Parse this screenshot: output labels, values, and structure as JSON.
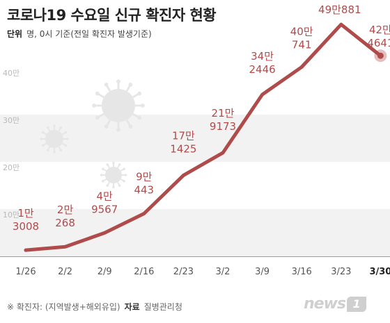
{
  "title": "코로나19 수요일 신규 확진자 현황",
  "unit": {
    "label": "단위",
    "text": "명, 0시 기준(전일 확진자 발생기준)"
  },
  "footnote": {
    "note": "※ 확진자: (지역발생+해외유입)",
    "source_label": "자료",
    "source": "질병관리청"
  },
  "logo": {
    "text": "news",
    "badge": "1"
  },
  "colors": {
    "line": "#b04b4b",
    "band": "#f2f2f2",
    "axis": "#9e9e9e",
    "virus": "#e6e6e6"
  },
  "chart_data": {
    "type": "line",
    "categories": [
      "1/26",
      "2/2",
      "2/9",
      "2/16",
      "2/23",
      "3/2",
      "3/9",
      "3/16",
      "3/23",
      "3/30"
    ],
    "values": [
      13008,
      20268,
      49567,
      90443,
      171425,
      219173,
      342446,
      400741,
      490881,
      424641
    ],
    "data_labels": [
      [
        "1만",
        "3008"
      ],
      [
        "2만",
        "268"
      ],
      [
        "4만",
        "9567"
      ],
      [
        "9만",
        "443"
      ],
      [
        "17만",
        "1425"
      ],
      [
        "21만",
        "9173"
      ],
      [
        "34만",
        "2446"
      ],
      [
        "40만",
        "741"
      ],
      [
        "49만881",
        ""
      ],
      [
        "42만",
        "4641"
      ]
    ],
    "y_ticks": [
      {
        "value": 100000,
        "label": "10만"
      },
      {
        "value": 200000,
        "label": "20만"
      },
      {
        "value": 300000,
        "label": "30만"
      },
      {
        "value": 400000,
        "label": "40만"
      }
    ],
    "ylim": [
      0,
      500000
    ],
    "highlight_index": 9,
    "grid": "alternating bands",
    "legend": "none"
  }
}
